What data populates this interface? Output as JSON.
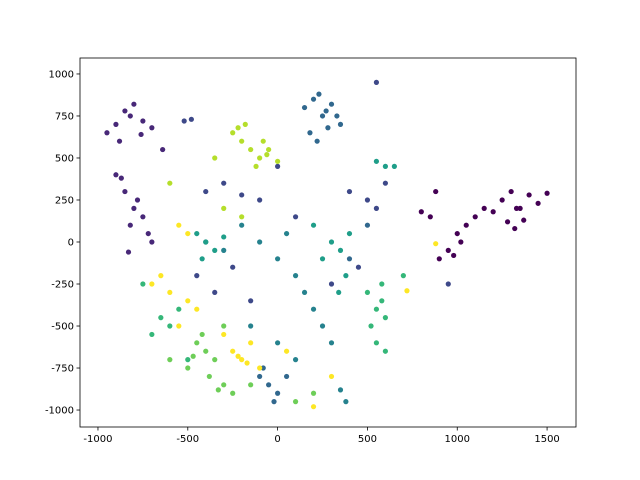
{
  "chart_data": {
    "type": "scatter",
    "xlim": [
      -1100,
      1661
    ],
    "ylim": [
      -1101,
      1095
    ],
    "xticks": [
      -1000,
      -500,
      0,
      500,
      1000,
      1500
    ],
    "yticks": [
      -1000,
      -750,
      -500,
      -250,
      0,
      250,
      500,
      750,
      1000
    ],
    "series": [
      {
        "color": "#440154",
        "x": [
          1250,
          1300,
          1350,
          1400,
          1450,
          1500,
          1280,
          1320,
          1200,
          1150,
          1100,
          1050,
          1000,
          950,
          900,
          850,
          1020,
          980,
          1370,
          1330,
          800,
          880
        ],
        "y": [
          250,
          300,
          200,
          280,
          230,
          290,
          120,
          80,
          180,
          200,
          150,
          100,
          50,
          -50,
          -100,
          150,
          0,
          -80,
          130,
          200,
          180,
          300
        ]
      },
      {
        "color": "#482878",
        "x": [
          -950,
          -900,
          -850,
          -800,
          -750,
          -700,
          -880,
          -820,
          -760,
          -850,
          -800,
          -750,
          -820,
          -780,
          -720,
          -900,
          -700,
          -640,
          -870,
          -830
        ],
        "y": [
          650,
          700,
          780,
          820,
          720,
          680,
          600,
          750,
          640,
          300,
          200,
          150,
          100,
          250,
          50,
          400,
          0,
          550,
          380,
          -60
        ]
      },
      {
        "color": "#3e4989",
        "x": [
          -400,
          -300,
          -200,
          -100,
          0,
          400,
          500,
          550,
          600,
          450,
          -350,
          -450,
          -250,
          -150,
          100,
          300,
          950,
          550,
          -520,
          -480
        ],
        "y": [
          300,
          350,
          280,
          250,
          450,
          300,
          250,
          200,
          350,
          -150,
          -300,
          -200,
          -150,
          -350,
          150,
          -250,
          -250,
          950,
          720,
          730
        ]
      },
      {
        "color": "#31688e",
        "x": [
          150,
          200,
          250,
          300,
          350,
          180,
          280,
          220,
          330,
          -100,
          -50,
          0,
          50,
          -80,
          -20,
          400,
          500,
          230,
          270
        ],
        "y": [
          800,
          850,
          750,
          820,
          700,
          650,
          680,
          600,
          750,
          -800,
          -850,
          -900,
          -800,
          -750,
          -950,
          -100,
          100,
          880,
          780
        ]
      },
      {
        "color": "#26828e",
        "x": [
          -100,
          0,
          50,
          100,
          -200,
          -300,
          -400,
          150,
          200,
          250,
          300,
          -150,
          0,
          100,
          350,
          380
        ],
        "y": [
          0,
          -100,
          50,
          -200,
          100,
          -50,
          0,
          -300,
          -400,
          -500,
          -600,
          -500,
          -600,
          -700,
          -880,
          -950
        ]
      },
      {
        "color": "#1f9e89",
        "x": [
          -450,
          -400,
          -350,
          -300,
          -420,
          300,
          350,
          400,
          250,
          200,
          600,
          650,
          550,
          380,
          340
        ],
        "y": [
          50,
          0,
          -50,
          30,
          -100,
          0,
          -50,
          50,
          -100,
          100,
          450,
          450,
          480,
          -200,
          -300
        ]
      },
      {
        "color": "#35b779",
        "x": [
          500,
          550,
          600,
          520,
          580,
          -650,
          -600,
          -700,
          -550,
          -500,
          700,
          550,
          -750,
          600,
          580
        ],
        "y": [
          -300,
          -400,
          -450,
          -500,
          -350,
          -450,
          -500,
          -550,
          -400,
          -700,
          -200,
          -600,
          -250,
          -650,
          -250
        ]
      },
      {
        "color": "#6ece58",
        "x": [
          -450,
          -400,
          -350,
          -300,
          -250,
          -500,
          -420,
          -380,
          -150,
          100,
          200,
          -600,
          -300,
          -330,
          -470
        ],
        "y": [
          -600,
          -650,
          -700,
          -850,
          -900,
          -750,
          -550,
          -800,
          -850,
          -950,
          -900,
          -700,
          -500,
          -880,
          -680
        ]
      },
      {
        "color": "#b5de2b",
        "x": [
          -250,
          -200,
          -150,
          -100,
          -50,
          0,
          -180,
          -120,
          -80,
          -300,
          -600,
          -350,
          -200,
          -220,
          -60
        ],
        "y": [
          650,
          600,
          550,
          500,
          550,
          480,
          700,
          450,
          600,
          200,
          350,
          500,
          150,
          680,
          520
        ]
      },
      {
        "color": "#fde725",
        "x": [
          -700,
          -650,
          -600,
          -550,
          -500,
          -450,
          -250,
          -200,
          -150,
          -100,
          -300,
          -500,
          -550,
          50,
          200,
          300,
          -220,
          -170,
          720,
          880
        ],
        "y": [
          -250,
          -200,
          -300,
          -500,
          -350,
          -400,
          -650,
          -700,
          -600,
          -750,
          -550,
          50,
          100,
          -650,
          -980,
          -800,
          -680,
          -720,
          -290,
          -10
        ]
      }
    ]
  }
}
